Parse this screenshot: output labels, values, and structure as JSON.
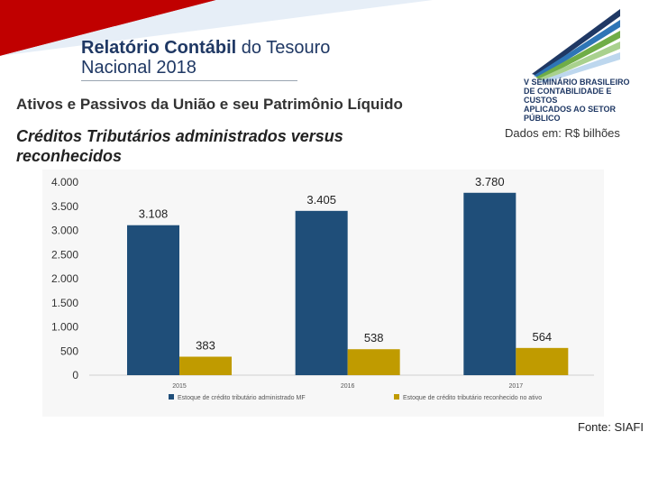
{
  "slide": {
    "title_bold": "Relatório Contábil",
    "title_rest": " do Tesouro",
    "title_line2": "Nacional 2018",
    "subtitle": "Ativos e Passivos da União e seu Patrimônio Líquido",
    "subtitle2": "Créditos Tributários administrados versus reconhecidos",
    "units": "Dados em: R$ bilhões",
    "source": "Fonte: SIAFI"
  },
  "logo": {
    "line1": "V SEMINÁRIO BRASILEIRO",
    "line2": "DE CONTABILIDADE E CUSTOS",
    "line3": "APLICADOS AO SETOR PÚBLICO"
  },
  "colors": {
    "navy": "#1f3864",
    "accent_red": "#c00000",
    "administrado": "#1f4e79",
    "reconhecido": "#c09b00"
  },
  "chart_data": {
    "type": "bar",
    "categories": [
      "2015",
      "2016",
      "2017"
    ],
    "series": [
      {
        "name": "Estoque de crédito tributário administrado MF",
        "values": [
          3108,
          3405,
          3780
        ],
        "labels": [
          "3.108",
          "3.405",
          "3.780"
        ]
      },
      {
        "name": "Estoque de crédito tributário reconhecido no ativo",
        "values": [
          383,
          538,
          564
        ],
        "labels": [
          "383",
          "538",
          "564"
        ]
      }
    ],
    "ylim": [
      0,
      4000
    ],
    "yticks": [
      0,
      500,
      1000,
      1500,
      2000,
      2500,
      3000,
      3500,
      4000
    ],
    "ytick_labels": [
      "0",
      "500",
      "1.000",
      "1.500",
      "2.000",
      "2.500",
      "3.000",
      "3.500",
      "4.000"
    ],
    "legend": "bottom",
    "grid": false
  }
}
